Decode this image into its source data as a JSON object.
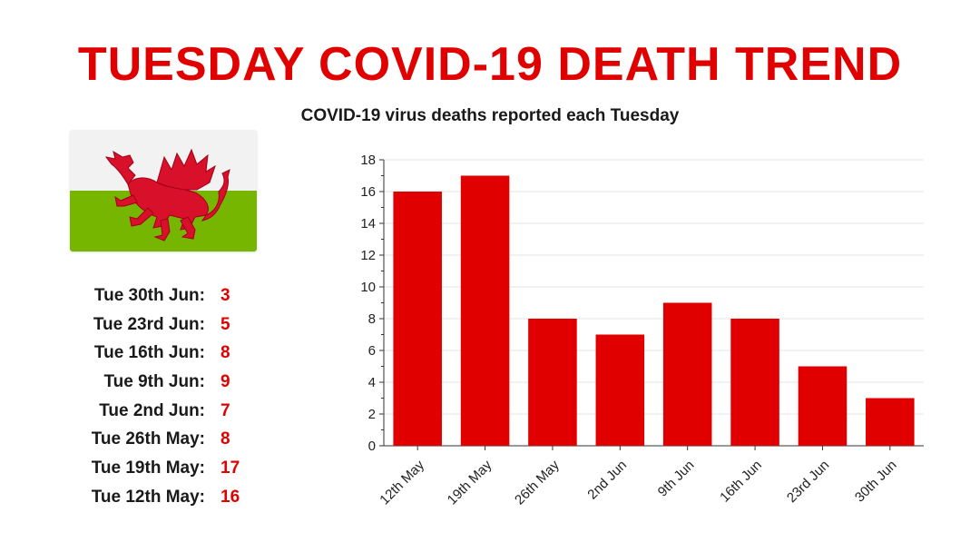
{
  "header": {
    "title": "TUESDAY COVID-19 DEATH TREND",
    "subtitle": "COVID-19 virus deaths reported each Tuesday"
  },
  "colors": {
    "accent": "#e00000",
    "flag_white": "#f2f2f2",
    "flag_green": "#76b500",
    "dragon": "#d8102a"
  },
  "flag": {
    "icon": "welsh-flag-dragon-icon"
  },
  "summary": {
    "items": [
      {
        "label": "Tue 30th Jun:",
        "value": "3"
      },
      {
        "label": "Tue 23rd Jun:",
        "value": "5"
      },
      {
        "label": "Tue 16th Jun:",
        "value": "8"
      },
      {
        "label": "Tue 9th Jun:",
        "value": "9"
      },
      {
        "label": "Tue 2nd Jun:",
        "value": "7"
      },
      {
        "label": "Tue 26th May:",
        "value": "8"
      },
      {
        "label": "Tue 19th May:",
        "value": "17"
      },
      {
        "label": "Tue 12th May:",
        "value": "16"
      }
    ]
  },
  "chart_data": {
    "type": "bar",
    "title": "COVID-19 virus deaths reported each Tuesday",
    "xlabel": "",
    "ylabel": "",
    "categories": [
      "12th May",
      "19th May",
      "26th May",
      "2nd Jun",
      "9th Jun",
      "16th Jun",
      "23rd Jun",
      "30th Jun"
    ],
    "values": [
      16,
      17,
      8,
      7,
      9,
      8,
      5,
      3
    ],
    "ylim": [
      0,
      18
    ],
    "yticks": [
      0,
      2,
      4,
      6,
      8,
      10,
      12,
      14,
      16,
      18
    ],
    "grid": true,
    "bar_color": "#e00000"
  }
}
